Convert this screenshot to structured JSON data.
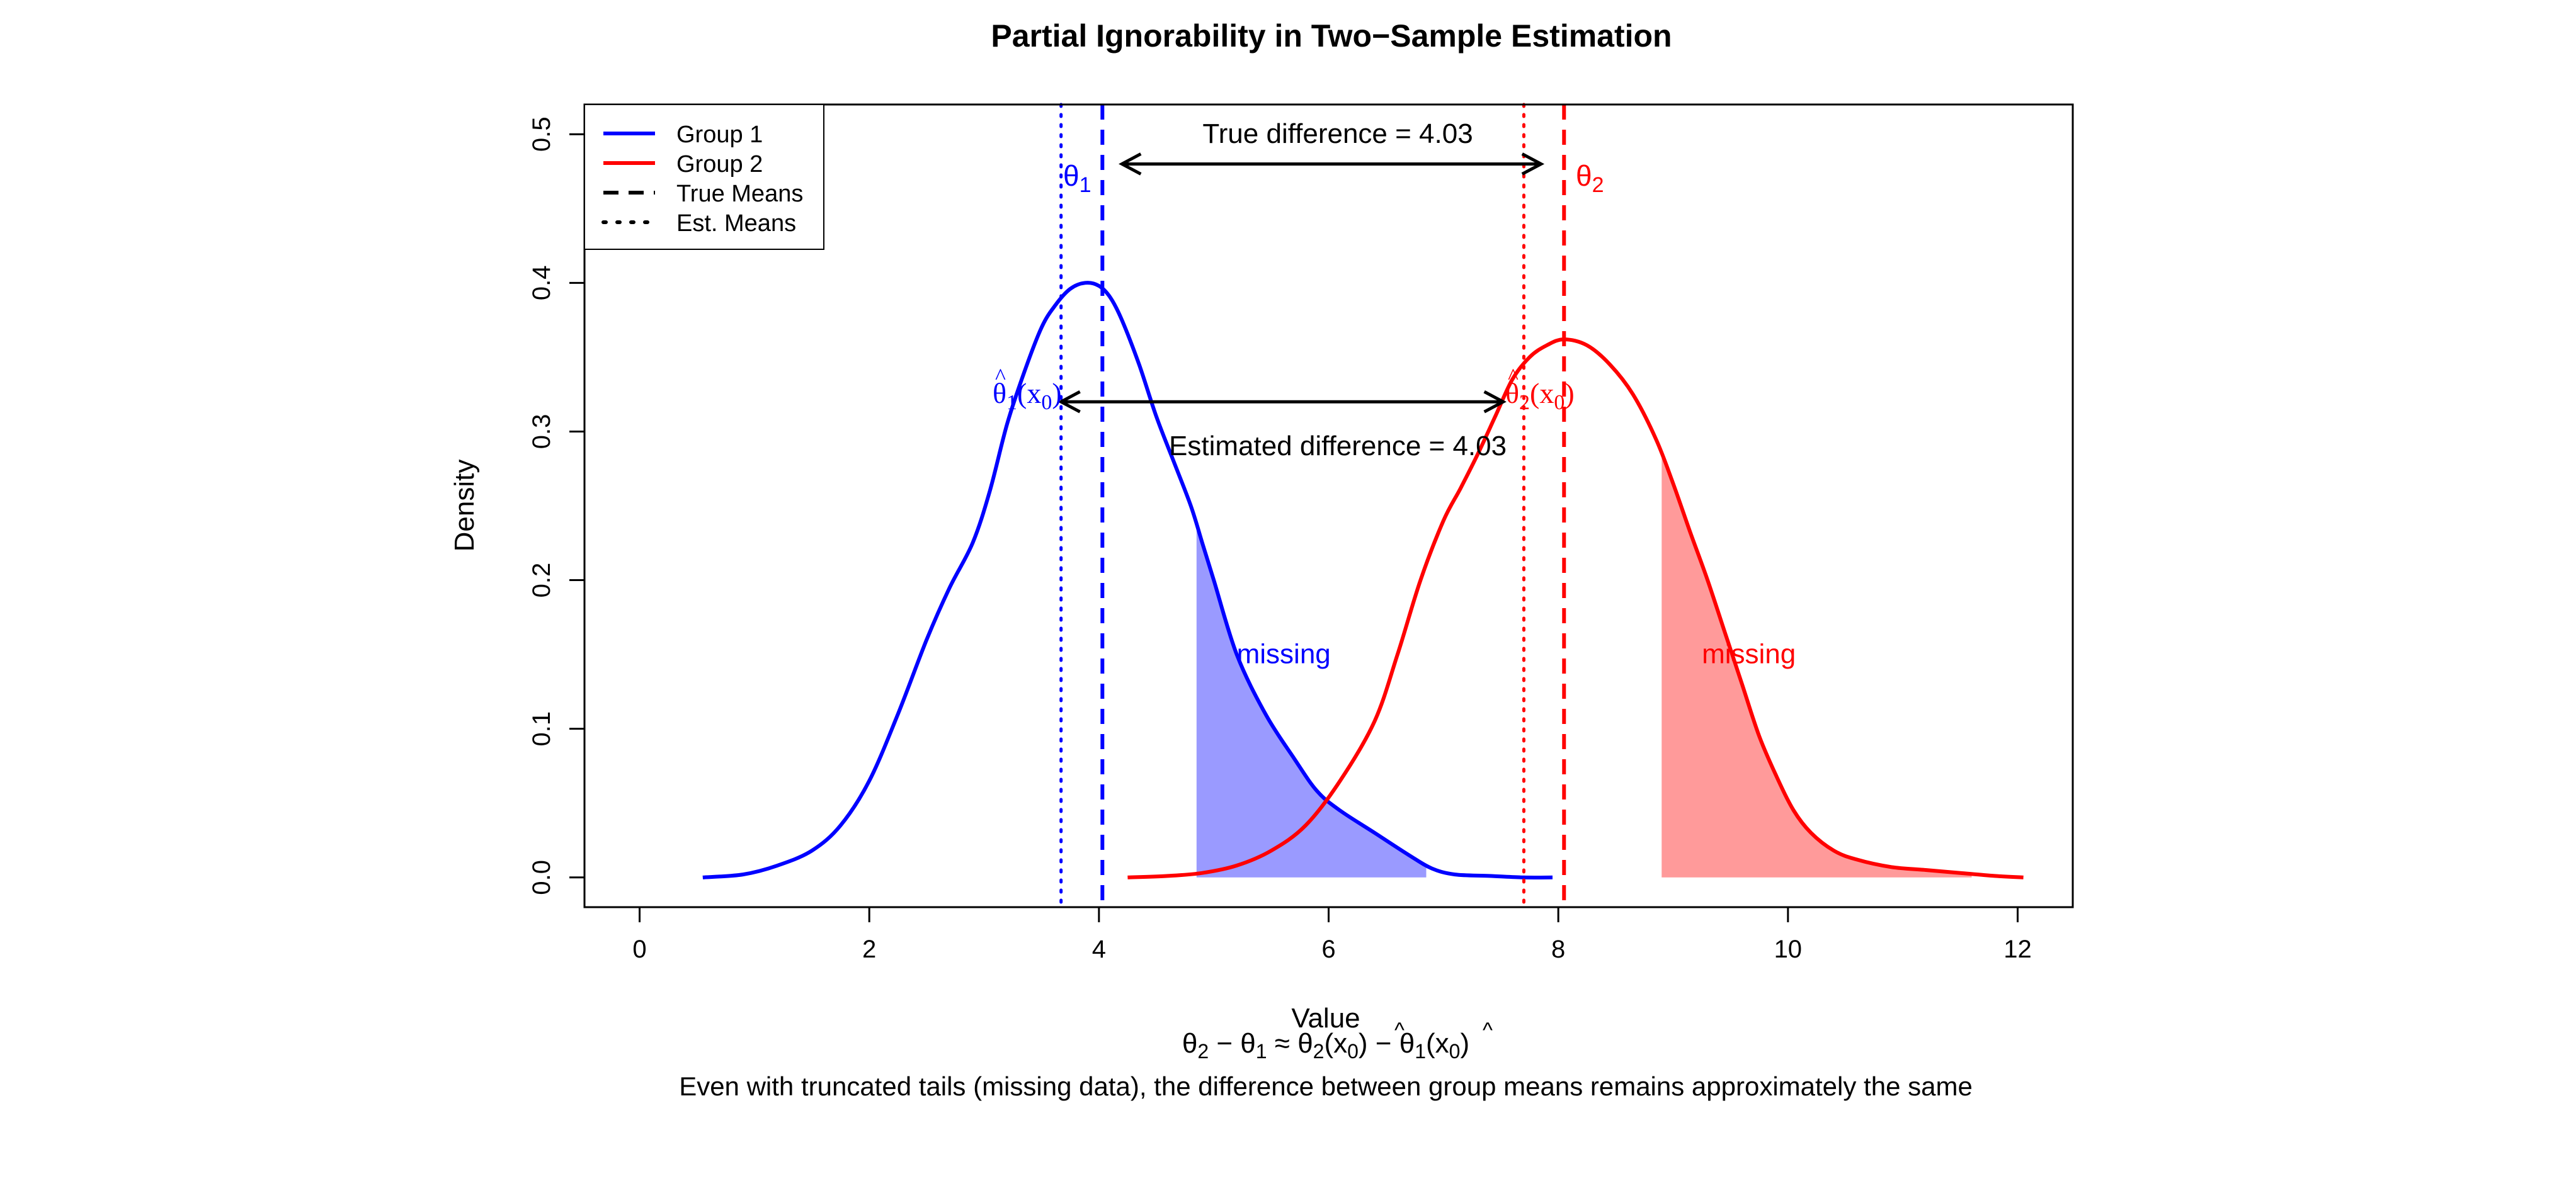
{
  "chart_data": {
    "type": "line",
    "title": "Partial Ignorability in Two−Sample Estimation",
    "xlabel": "Value",
    "ylabel": "Density",
    "xlim": [
      -0.48,
      12.48
    ],
    "ylim": [
      -0.02,
      0.52
    ],
    "xticks": [
      0,
      2,
      4,
      6,
      8,
      10,
      12
    ],
    "xtick_labels": [
      "0",
      "2",
      "4",
      "6",
      "8",
      "10",
      "12"
    ],
    "yticks": [
      0.0,
      0.1,
      0.2,
      0.3,
      0.4,
      0.5
    ],
    "ytick_labels": [
      "0.0",
      "0.1",
      "0.2",
      "0.3",
      "0.4",
      "0.5"
    ],
    "grid": false,
    "legend_position": "top-left",
    "legend": [
      {
        "label": "Group 1",
        "style": "solid",
        "color": "#0000ff"
      },
      {
        "label": "Group 2",
        "style": "solid",
        "color": "#ff0000"
      },
      {
        "label": "True Means",
        "style": "dashed",
        "color": "#000000"
      },
      {
        "label": "Est. Means",
        "style": "dotted",
        "color": "#000000"
      }
    ],
    "series": [
      {
        "name": "Group 1",
        "color": "#0000ff",
        "x": [
          0.55,
          0.9,
          1.2,
          1.5,
          1.75,
          2.0,
          2.25,
          2.5,
          2.7,
          2.9,
          3.05,
          3.2,
          3.35,
          3.5,
          3.62,
          3.75,
          3.88,
          4.0,
          4.1,
          4.2,
          4.35,
          4.5,
          4.65,
          4.8,
          4.9,
          5.0,
          5.2,
          5.45,
          5.7,
          5.9,
          6.1,
          6.4,
          6.7,
          6.9,
          7.1,
          7.4,
          7.7,
          7.95
        ],
        "y": [
          0.0,
          0.002,
          0.008,
          0.018,
          0.035,
          0.065,
          0.11,
          0.16,
          0.195,
          0.225,
          0.26,
          0.305,
          0.34,
          0.37,
          0.385,
          0.396,
          0.4,
          0.398,
          0.39,
          0.375,
          0.345,
          0.31,
          0.28,
          0.25,
          0.225,
          0.2,
          0.15,
          0.11,
          0.08,
          0.058,
          0.045,
          0.03,
          0.015,
          0.006,
          0.002,
          0.001,
          0.0,
          0.0
        ]
      },
      {
        "name": "Group 2",
        "color": "#ff0000",
        "x": [
          4.25,
          4.6,
          4.9,
          5.2,
          5.5,
          5.8,
          6.1,
          6.4,
          6.6,
          6.8,
          7.0,
          7.15,
          7.3,
          7.45,
          7.6,
          7.75,
          7.9,
          8.05,
          8.25,
          8.45,
          8.65,
          8.85,
          9.0,
          9.15,
          9.3,
          9.45,
          9.6,
          9.75,
          9.9,
          10.05,
          10.2,
          10.4,
          10.6,
          10.9,
          11.2,
          11.5,
          11.8,
          12.05
        ],
        "y": [
          0.0,
          0.001,
          0.003,
          0.008,
          0.018,
          0.035,
          0.065,
          0.105,
          0.15,
          0.2,
          0.24,
          0.262,
          0.285,
          0.31,
          0.335,
          0.35,
          0.358,
          0.362,
          0.358,
          0.345,
          0.325,
          0.295,
          0.265,
          0.232,
          0.2,
          0.165,
          0.13,
          0.095,
          0.068,
          0.045,
          0.03,
          0.018,
          0.012,
          0.007,
          0.005,
          0.003,
          0.001,
          0.0
        ]
      }
    ],
    "shaded_regions": [
      {
        "series": "Group 1",
        "x_from": 4.85,
        "x_to": 6.85,
        "color": "#9a9aff"
      },
      {
        "series": "Group 2",
        "x_from": 8.9,
        "x_to": 11.6,
        "color": "#ff9a9a"
      }
    ],
    "true_means": {
      "group1": 4.03,
      "group2": 8.05
    },
    "est_means": {
      "group1": 3.67,
      "group2": 7.7
    },
    "arrows": [
      {
        "from": 4.2,
        "to": 7.85,
        "y": 0.48,
        "label": "True difference = 4.03",
        "label_y": 0.5
      },
      {
        "from": 3.67,
        "to": 7.52,
        "y": 0.32,
        "label": "Estimated difference = 4.03",
        "label_y": 0.29
      }
    ],
    "annotations": {
      "theta1": "θ",
      "theta1_sub": "1",
      "theta2": "θ",
      "theta2_sub": "2",
      "theta1_hat": "θ",
      "theta1_hat_mark": "^",
      "theta1_hat_sub": "1",
      "theta1_hat_arg": "(x",
      "theta1_hat_arg_sub": "0",
      "theta1_hat_close": ")",
      "theta2_hat": "θ",
      "theta2_hat_mark": "^",
      "theta2_hat_sub": "2",
      "theta2_hat_arg": "(x",
      "theta2_hat_arg_sub": "0",
      "theta2_hat_close": ")",
      "missing1": "missing",
      "missing2": "missing"
    },
    "formula": {
      "t2": "θ",
      "t2_sub": "2",
      "minus": " − ",
      "t1": "θ",
      "t1_sub": "1",
      "approx": " ≈ ",
      "hat2": "θ",
      "hat2_sub": "2",
      "hat2_arg": "(x",
      "hat2_arg_sub": "0",
      "hat2_close": ")",
      "minus2": " − ",
      "hat1": "θ",
      "hat1_sub": "1",
      "hat1_arg": "(x",
      "hat1_arg_sub": "0",
      "hat1_close": ")",
      "hat_mark": "^"
    },
    "caption": "Even with truncated tails (missing data), the difference between group means remains approximately the same"
  }
}
